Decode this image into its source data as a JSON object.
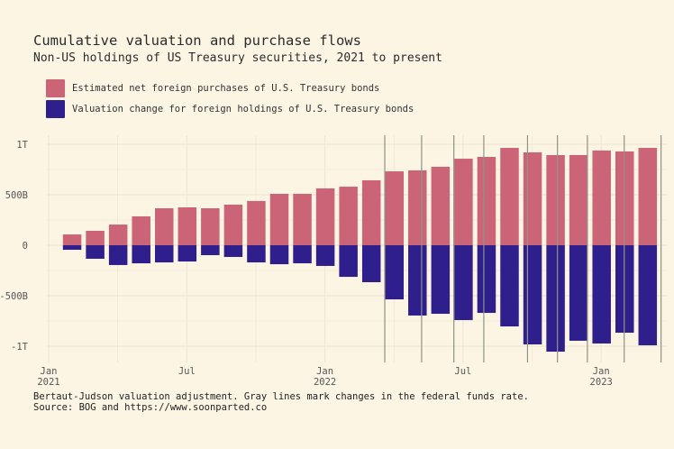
{
  "chart_data": {
    "type": "bar",
    "stacked": "diverging",
    "title": "Cumulative valuation and purchase flows",
    "subtitle": "Non-US holdings of US Treasury securities, 2021 to present",
    "xlabel": "",
    "ylabel": "",
    "ylim": [
      -1100,
      1100
    ],
    "y_unit": "billions USD",
    "yticks": [
      {
        "value": 1000,
        "label": "1T"
      },
      {
        "value": 500,
        "label": "500B"
      },
      {
        "value": 0,
        "label": "0"
      },
      {
        "value": -500,
        "label": "-500B"
      },
      {
        "value": -1000,
        "label": "-1T"
      }
    ],
    "xticks": [
      {
        "month": 0,
        "line1": "Jan",
        "line2": "2021"
      },
      {
        "month": 6,
        "line1": "Jul",
        "line2": ""
      },
      {
        "month": 12,
        "line1": "Jan",
        "line2": "2022"
      },
      {
        "month": 18,
        "line1": "Jul",
        "line2": ""
      },
      {
        "month": 24,
        "line1": "Jan",
        "line2": "2023"
      }
    ],
    "x_range_months": [
      -0.3,
      26.7
    ],
    "categories": [
      "2021-02",
      "2021-03",
      "2021-04",
      "2021-05",
      "2021-06",
      "2021-07",
      "2021-08",
      "2021-09",
      "2021-10",
      "2021-11",
      "2021-12",
      "2022-01",
      "2022-02",
      "2022-03",
      "2022-04",
      "2022-05",
      "2022-06",
      "2022-07",
      "2022-08",
      "2022-09",
      "2022-10",
      "2022-11",
      "2022-12",
      "2023-01",
      "2023-02",
      "2023-03"
    ],
    "series": [
      {
        "name": "Estimated net foreign purchases of U.S. Treasury bonds",
        "color": "#cc6477",
        "values": [
          107,
          143,
          205,
          286,
          366,
          375,
          366,
          402,
          438,
          509,
          509,
          563,
          580,
          643,
          732,
          741,
          777,
          857,
          875,
          964,
          920,
          893,
          893,
          938,
          929,
          964
        ]
      },
      {
        "name": "Valuation change for foreign holdings of U.S. Treasury bonds",
        "color": "#2e1f8c",
        "values": [
          -45,
          -134,
          -196,
          -179,
          -170,
          -161,
          -98,
          -116,
          -170,
          -188,
          -179,
          -205,
          -313,
          -366,
          -536,
          -696,
          -679,
          -741,
          -670,
          -804,
          -982,
          -1054,
          -946,
          -973,
          -866,
          -991
        ]
      }
    ],
    "fed_rate_change_lines_month": [
      14.6,
      16.2,
      17.6,
      18.9,
      20.8,
      22.1,
      23.4,
      25.0,
      26.6
    ],
    "legend_position": "top-left",
    "grid": true,
    "caption_line1": "Bertaut-Judson valuation adjustment. Gray lines mark changes in the federal funds rate.",
    "caption_line2": "Source: BOG and https://www.soonparted.co"
  },
  "colors": {
    "background": "#fcf5e4",
    "grid": "#efe7d4",
    "rate_line": "#8f9288"
  }
}
